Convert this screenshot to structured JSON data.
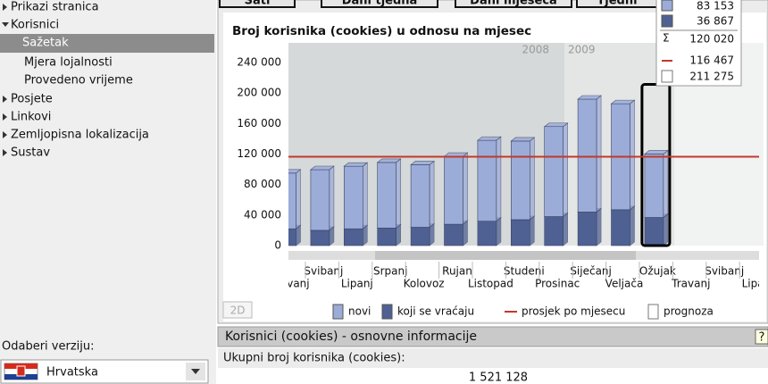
{
  "sidebar": {
    "items": [
      "Prikazi stranica",
      "Korisnici",
      "Sažetak",
      "Mjera lojalnosti",
      "Provedeno vrijeme",
      "Posjete",
      "Linkovi",
      "Zemljopisna lokalizacija",
      "Sustav"
    ],
    "version_label": "Odaberi verziju:",
    "version": "Hrvatska"
  },
  "tabs": [
    "Sati",
    "Dani tjedna",
    "Dani mjeseca",
    "Tjedni"
  ],
  "chart_data": {
    "type": "bar",
    "stacked": true,
    "title": "Broj korisnika (cookies) u odnosu na mjesec",
    "categories": [
      "Travanj",
      "Svibanj",
      "Lipanj",
      "Srpanj",
      "Kolovoz",
      "Rujan",
      "Listopad",
      "Studeni",
      "Prosinac",
      "Siječanj",
      "Veljača",
      "Ožujak",
      "Travanj",
      "Svibanj",
      "Lipanj"
    ],
    "year_labels": [
      "2008",
      "2009"
    ],
    "series": [
      {
        "name": "koji se vraćaju",
        "color": "#4f6193",
        "values": [
          22000,
          20000,
          22000,
          23000,
          24000,
          28000,
          32000,
          34000,
          38000,
          44000,
          47000,
          36867,
          null,
          null,
          null
        ]
      },
      {
        "name": "novi",
        "color": "#9cacd8",
        "values": [
          73000,
          79500,
          82000,
          86000,
          82000,
          89000,
          106000,
          103000,
          118000,
          148000,
          139000,
          83153,
          null,
          null,
          null
        ]
      }
    ],
    "legend_order": [
      1,
      0
    ],
    "average": {
      "name": "prosjek po mjesecu",
      "value": 116467,
      "color": "#c0392b"
    },
    "forecast": {
      "name": "prognoza",
      "values": [
        null,
        null,
        null,
        null,
        null,
        null,
        null,
        null,
        null,
        null,
        null,
        211275,
        null,
        null,
        null
      ]
    },
    "tooltip": {
      "novi": "83 153",
      "returning": "36 867",
      "sum_symbol": "Σ",
      "sum": "120 020",
      "average": "116 467",
      "forecast": "211 275"
    },
    "ylim": [
      0,
      240000
    ],
    "yticks": [
      0,
      {
        "value": 40000,
        "label": "40 000"
      },
      {
        "value": 80000,
        "label": "80 000"
      },
      {
        "value": 120000,
        "label": "120 000"
      },
      {
        "value": 160000,
        "label": "160 000"
      },
      {
        "value": 200000,
        "label": "200 000"
      },
      {
        "value": 240000,
        "label": "240 000"
      }
    ]
  },
  "view_toggle": "2D",
  "info_panel": {
    "title": "Korisnici (cookies) - osnovne informacije",
    "help": "?",
    "label": "Ukupni broj korisnika (cookies):",
    "value": "1 521 128"
  }
}
